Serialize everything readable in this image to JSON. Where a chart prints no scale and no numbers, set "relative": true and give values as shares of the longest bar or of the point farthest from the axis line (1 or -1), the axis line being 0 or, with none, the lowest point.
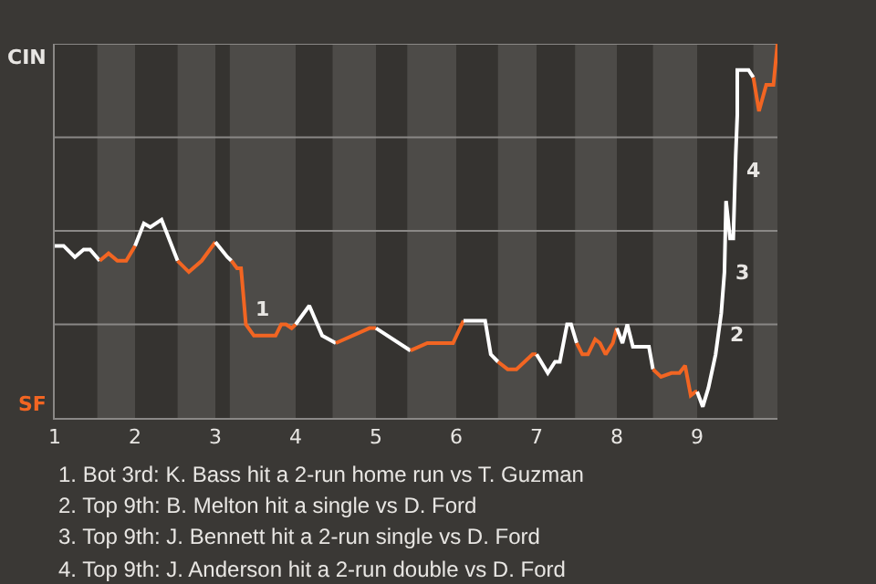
{
  "chart_data": {
    "type": "line",
    "relative": true,
    "grid": false,
    "marker": "none",
    "line_style": "solid",
    "xlim": [
      1,
      10
    ],
    "xticks": [
      1,
      2,
      3,
      4,
      5,
      6,
      7,
      8,
      9
    ],
    "series": [
      {
        "color": "#ffffff",
        "x": [
          1.0,
          1.11,
          1.25,
          1.36,
          1.44,
          1.56
        ],
        "values": [
          0.46,
          0.46,
          0.43,
          0.45,
          0.45,
          0.42
        ]
      },
      {
        "color": "#f26522",
        "x": [
          1.56,
          1.67,
          1.78,
          1.89,
          2.0
        ],
        "values": [
          0.42,
          0.44,
          0.42,
          0.42,
          0.46
        ]
      },
      {
        "color": "#ffffff",
        "x": [
          2.0,
          2.11,
          2.19,
          2.33,
          2.53
        ],
        "values": [
          0.46,
          0.52,
          0.51,
          0.53,
          0.42
        ]
      },
      {
        "color": "#f26522",
        "x": [
          2.53,
          2.67,
          2.83,
          3.0
        ],
        "values": [
          0.42,
          0.39,
          0.42,
          0.47
        ]
      },
      {
        "color": "#ffffff",
        "x": [
          3.0,
          3.15,
          3.2
        ],
        "values": [
          0.47,
          0.43,
          0.42
        ]
      },
      {
        "color": "#f26522",
        "x": [
          3.2,
          3.27,
          3.32,
          3.38,
          3.48,
          3.75,
          3.82,
          3.88,
          3.95,
          4.0
        ],
        "values": [
          0.42,
          0.4,
          0.4,
          0.25,
          0.22,
          0.22,
          0.25,
          0.25,
          0.24,
          0.25
        ]
      },
      {
        "color": "#ffffff",
        "x": [
          4.0,
          4.17,
          4.33,
          4.5
        ],
        "values": [
          0.25,
          0.3,
          0.22,
          0.2
        ]
      },
      {
        "color": "#f26522",
        "x": [
          4.5,
          4.92,
          5.0
        ],
        "values": [
          0.2,
          0.24,
          0.24
        ]
      },
      {
        "color": "#ffffff",
        "x": [
          5.0,
          5.43
        ],
        "values": [
          0.24,
          0.18
        ]
      },
      {
        "color": "#f26522",
        "x": [
          5.43,
          5.64,
          5.82,
          5.96,
          6.09
        ],
        "values": [
          0.18,
          0.2,
          0.2,
          0.2,
          0.26
        ]
      },
      {
        "color": "#ffffff",
        "x": [
          6.09,
          6.36,
          6.43,
          6.52
        ],
        "values": [
          0.26,
          0.26,
          0.17,
          0.15
        ]
      },
      {
        "color": "#f26522",
        "x": [
          6.52,
          6.64,
          6.75,
          6.95,
          7.0
        ],
        "values": [
          0.15,
          0.13,
          0.13,
          0.17,
          0.17
        ]
      },
      {
        "color": "#ffffff",
        "x": [
          7.0,
          7.14,
          7.23,
          7.29,
          7.38,
          7.43,
          7.5
        ],
        "values": [
          0.17,
          0.12,
          0.15,
          0.15,
          0.25,
          0.25,
          0.2
        ]
      },
      {
        "color": "#f26522",
        "x": [
          7.5,
          7.57,
          7.64,
          7.73,
          7.79,
          7.86,
          7.95,
          8.0
        ],
        "values": [
          0.2,
          0.17,
          0.17,
          0.21,
          0.2,
          0.17,
          0.2,
          0.24
        ]
      },
      {
        "color": "#ffffff",
        "x": [
          8.0,
          8.07,
          8.13,
          8.2,
          8.4,
          8.45
        ],
        "values": [
          0.24,
          0.2,
          0.25,
          0.19,
          0.19,
          0.13
        ]
      },
      {
        "color": "#f26522",
        "x": [
          8.45,
          8.55,
          8.68,
          8.78,
          8.85,
          8.92,
          8.98,
          9.0
        ],
        "values": [
          0.13,
          0.11,
          0.12,
          0.12,
          0.14,
          0.06,
          0.07,
          0.07
        ]
      },
      {
        "color": "#ffffff",
        "x": [
          9.0,
          9.07,
          9.14,
          9.23,
          9.3,
          9.34,
          9.36,
          9.41,
          9.45,
          9.48,
          9.5,
          9.5,
          9.64,
          9.7
        ],
        "values": [
          0.07,
          0.03,
          0.08,
          0.17,
          0.28,
          0.39,
          0.58,
          0.48,
          0.48,
          0.7,
          0.81,
          0.93,
          0.93,
          0.91
        ]
      },
      {
        "color": "#f26522",
        "x": [
          9.7,
          9.77,
          9.86,
          9.95,
          10.0
        ],
        "values": [
          0.91,
          0.82,
          0.89,
          0.89,
          1.0
        ]
      }
    ],
    "bands": [
      {
        "axis": "x",
        "from": 1.53,
        "to": 2.0,
        "color": "#4d4b48"
      },
      {
        "axis": "x",
        "from": 2.53,
        "to": 3.0,
        "color": "#4d4b48"
      },
      {
        "axis": "x",
        "from": 3.18,
        "to": 4.0,
        "color": "#4d4b48"
      },
      {
        "axis": "x",
        "from": 4.46,
        "to": 5.0,
        "color": "#4d4b48"
      },
      {
        "axis": "x",
        "from": 5.39,
        "to": 6.0,
        "color": "#4d4b48"
      },
      {
        "axis": "x",
        "from": 6.52,
        "to": 7.0,
        "color": "#4d4b48"
      },
      {
        "axis": "x",
        "from": 7.48,
        "to": 8.0,
        "color": "#4d4b48"
      },
      {
        "axis": "x",
        "from": 8.45,
        "to": 9.0,
        "color": "#4d4b48"
      },
      {
        "axis": "x",
        "from": 9.7,
        "to": 10.0,
        "color": "#4d4b48"
      }
    ],
    "ref_lines": [
      {
        "axis": "y",
        "value": 0.25,
        "color": "#8a8886"
      },
      {
        "axis": "y",
        "value": 0.5,
        "color": "#8a8886"
      },
      {
        "axis": "y",
        "value": 0.75,
        "color": "#8a8886"
      },
      {
        "axis": "y",
        "value": 1,
        "color": "#8a8886"
      }
    ],
    "annotations": [
      "CIN",
      "SF",
      {
        "text": "1",
        "x": 3.38,
        "y": 0.29
      },
      {
        "text": "2",
        "x": 9.3,
        "y": 0.22
      },
      {
        "text": "3",
        "x": 9.36,
        "y": 0.39
      },
      {
        "text": "4",
        "x": 9.5,
        "y": 0.66
      },
      "1. Bot 3rd: K. Bass hit a 2-run home run vs T. Guzman",
      "2. Top 9th: B. Melton hit a single vs D. Ford",
      "3. Top 9th: J. Bennett hit a 2-run single vs D. Ford",
      "4. Top 9th: J. Anderson hit a 2-run double vs D. Ford"
    ]
  }
}
